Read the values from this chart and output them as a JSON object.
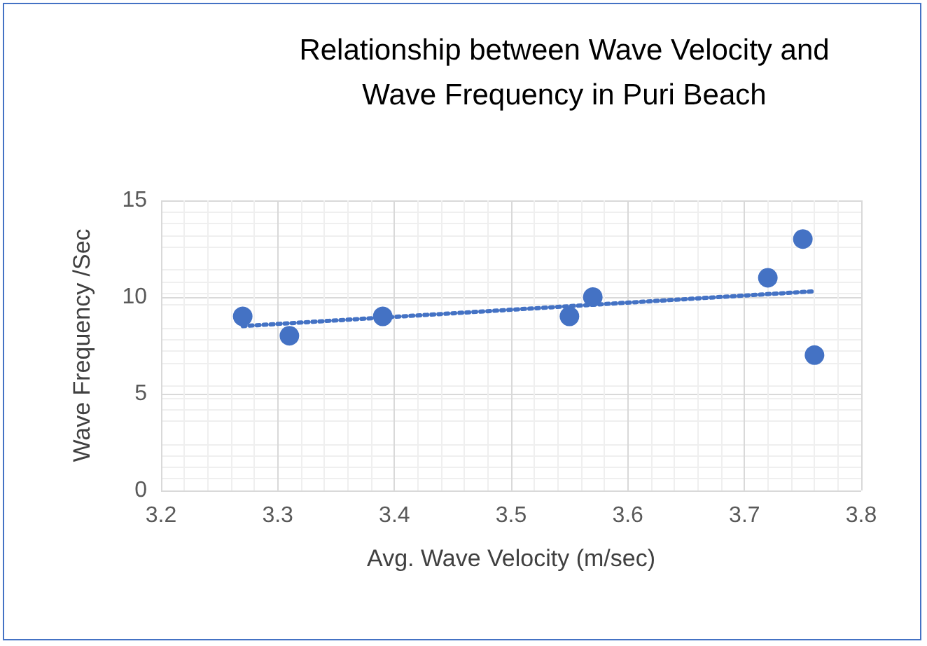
{
  "chart_data": {
    "type": "scatter",
    "title": "Relationship between Wave Velocity and\nWave Frequency in Puri Beach",
    "xlabel": "Avg. Wave Velocity (m/sec)",
    "ylabel": "Wave Frequency /Sec",
    "x": [
      3.27,
      3.31,
      3.39,
      3.55,
      3.57,
      3.72,
      3.75,
      3.76
    ],
    "series": [
      {
        "color": "#4472c4",
        "values": [
          9,
          8,
          9,
          9,
          10,
          11,
          13,
          7
        ],
        "marker": "circle"
      },
      {
        "type": "line",
        "color": "#4472c4",
        "line_style": "dotted",
        "marker": "none",
        "x": [
          3.27,
          3.76
        ],
        "values": [
          8.5,
          10.3
        ]
      }
    ],
    "xlim": [
      3.2,
      3.8
    ],
    "xticks": [
      3.2,
      3.3,
      3.4,
      3.5,
      3.6,
      3.7,
      3.8
    ],
    "ylim": [
      0,
      15
    ],
    "yticks": [
      0,
      5,
      10,
      15
    ],
    "grid": true
  }
}
